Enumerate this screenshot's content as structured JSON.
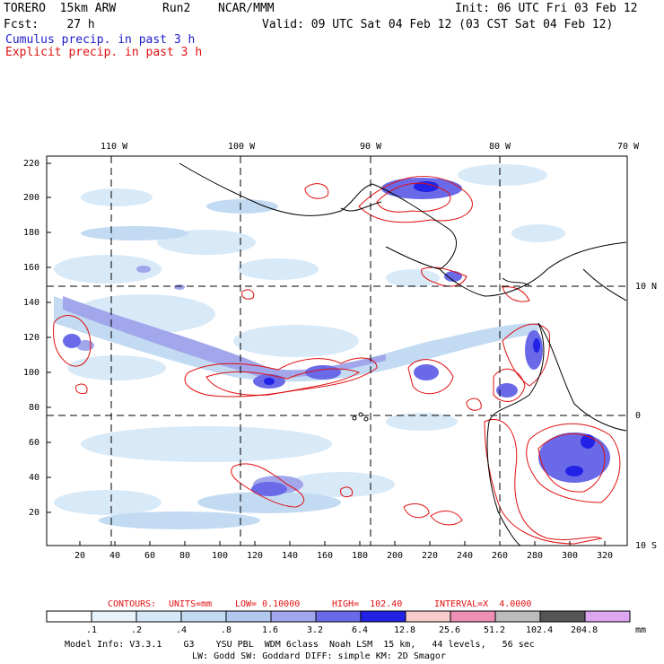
{
  "header": {
    "model": "TORERO  15km ARW",
    "run": "Run2",
    "org": "NCAR/MMM",
    "init": "Init: 06 UTC Fri 03 Feb 12",
    "fcst": "Fcst:    27 h",
    "valid": "Valid: 09 UTC Sat 04 Feb 12 (03 CST Sat 04 Feb 12)",
    "legend_cumulus": "Cumulus precip. in past 3 h",
    "legend_explicit": "Explicit precip. in past 3 h"
  },
  "map": {
    "top_lon_labels": [
      "110 W",
      "100 W",
      "90 W",
      "80 W",
      "70 W"
    ],
    "right_lat_labels": [
      "10 N",
      "0",
      "10 S"
    ],
    "y_ticks": [
      "220",
      "200",
      "180",
      "160",
      "140",
      "120",
      "100",
      "80",
      "60",
      "40",
      "20"
    ],
    "x_ticks": [
      "20",
      "40",
      "60",
      "80",
      "100",
      "120",
      "140",
      "160",
      "180",
      "200",
      "220",
      "240",
      "260",
      "280",
      "300",
      "320"
    ]
  },
  "contours": {
    "label": "CONTOURS:",
    "units": "UNITS=mm",
    "low": "LOW= 0.10000",
    "high": "HIGH=  102.40",
    "interval": "INTERVAL=X  4.0000"
  },
  "colorbar": {
    "labels": [
      ".1",
      ".2",
      ".4",
      ".8",
      "1.6",
      "3.2",
      "6.4",
      "12.8",
      "25.6",
      "51.2",
      "102.4",
      "204.8"
    ],
    "units": "mm",
    "colors": [
      "#ffffff",
      "#e8f2fb",
      "#d6e8f7",
      "#c2dbf3",
      "#b2c8ee",
      "#a2a6eb",
      "#6a6ae8",
      "#2222e6",
      "#f6cccc",
      "#f08fb4",
      "#bcbcbc",
      "#555555",
      "#dca6f0"
    ]
  },
  "footer": {
    "line1": "Model Info: V3.3.1    G3    YSU PBL  WDM 6class  Noah LSM  15 km,   44 levels,   56 sec",
    "line2": "LW: Godd SW: Goddard DIFF: simple KM: 2D Smagor"
  }
}
